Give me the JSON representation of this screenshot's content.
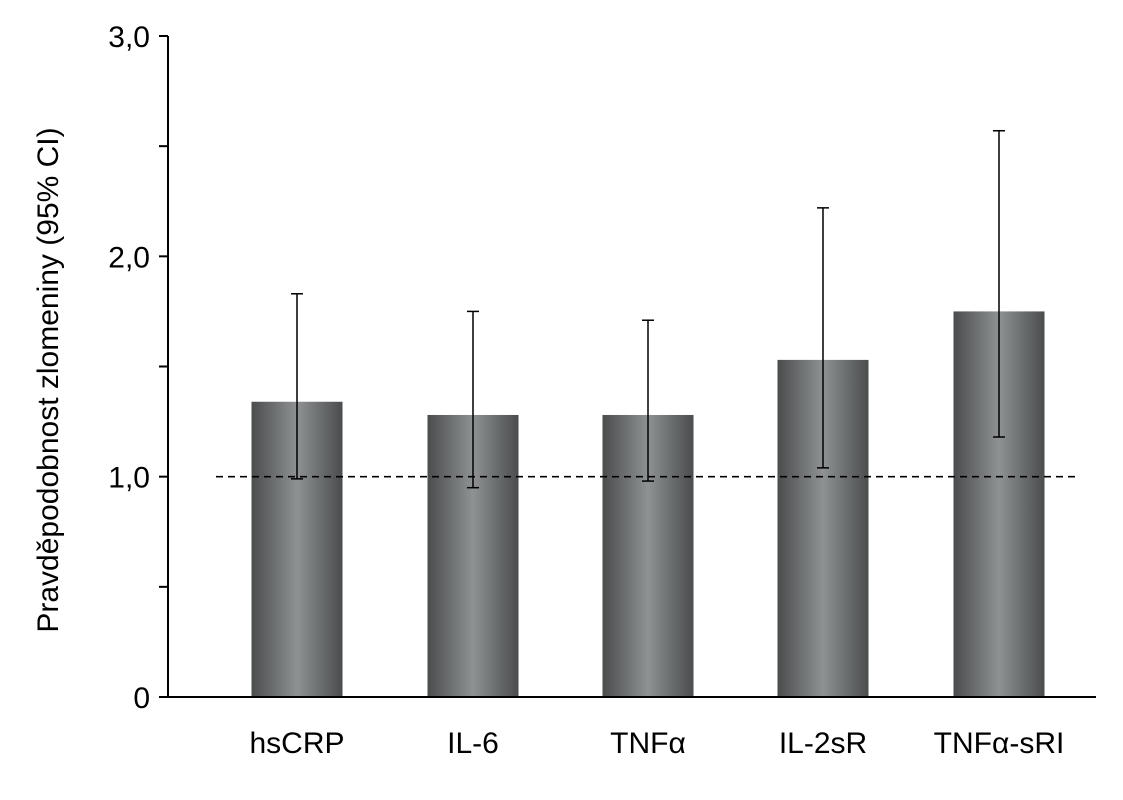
{
  "chart_data": {
    "type": "bar",
    "title": "",
    "xlabel": "",
    "ylabel": "Pravděpodobnost  zlomeniny  (95% CI)",
    "ylim": [
      0,
      3.0
    ],
    "yticks": [
      0,
      0.5,
      1.0,
      1.5,
      2.0,
      2.5,
      3.0
    ],
    "ytick_labels": [
      "0",
      "",
      "1,0",
      "",
      "2,0",
      "",
      "3,0"
    ],
    "categories": [
      "hsCRP",
      "IL-6",
      "TNFα",
      "IL-2sR",
      "TNFα-sRI"
    ],
    "values": [
      1.34,
      1.28,
      1.28,
      1.53,
      1.75
    ],
    "ci_low": [
      0.99,
      0.95,
      0.98,
      1.04,
      1.18
    ],
    "ci_high": [
      1.83,
      1.75,
      1.71,
      2.22,
      2.57
    ],
    "reference_line": 1.0,
    "grid": false,
    "colors": {
      "bar_dark": "#4a4c4d",
      "bar_light": "#8e9293",
      "axis": "#000000"
    }
  }
}
